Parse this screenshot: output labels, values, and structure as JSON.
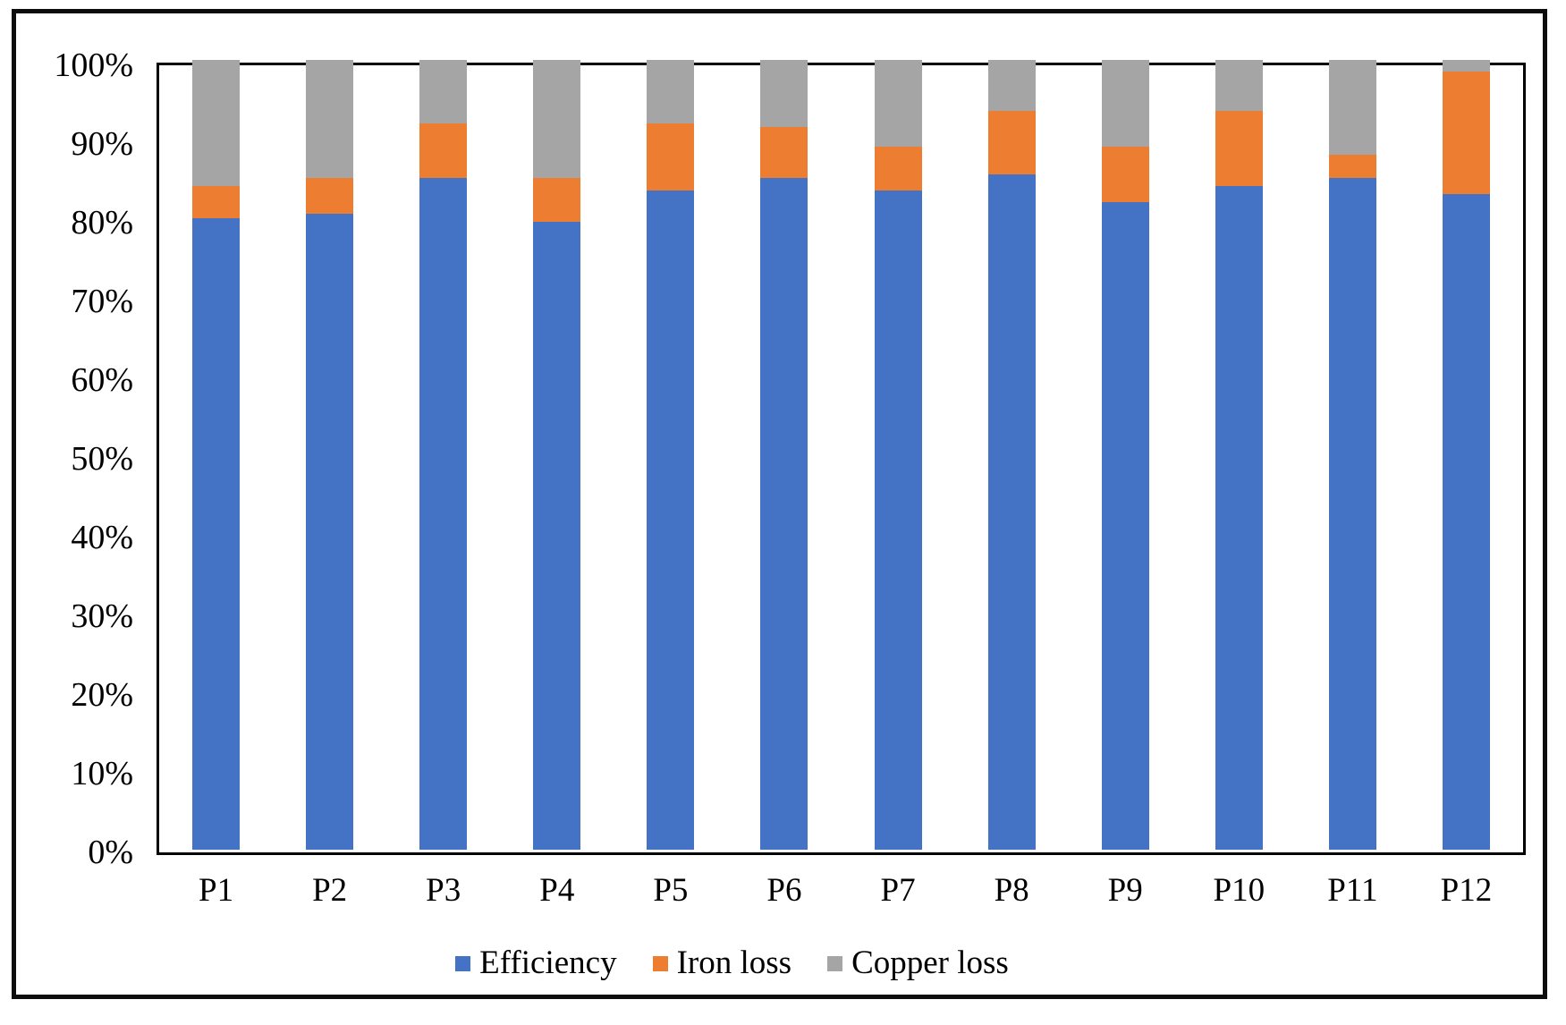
{
  "chart_data": {
    "type": "bar",
    "stacked": true,
    "percent_stacked": true,
    "title": "",
    "xlabel": "",
    "ylabel": "",
    "categories": [
      "P1",
      "P2",
      "P3",
      "P4",
      "P5",
      "P6",
      "P7",
      "P8",
      "P9",
      "P10",
      "P11",
      "P12"
    ],
    "series": [
      {
        "name": "Efficiency",
        "color": "#4472C4",
        "values": [
          80,
          80.5,
          85,
          79.5,
          83.5,
          85,
          83.5,
          85.5,
          82,
          84,
          85,
          83
        ]
      },
      {
        "name": "Iron loss",
        "color": "#ED7D31",
        "values": [
          4,
          4.5,
          7,
          5.5,
          8.5,
          6.5,
          5.5,
          8,
          7,
          9.5,
          3,
          15.5
        ]
      },
      {
        "name": "Copper loss",
        "color": "#A5A5A5",
        "values": [
          16,
          15,
          8,
          15,
          8,
          8.5,
          11,
          6.5,
          11,
          6.5,
          12,
          1.5
        ]
      }
    ],
    "y_ticks": [
      "0%",
      "10%",
      "20%",
      "30%",
      "40%",
      "50%",
      "60%",
      "70%",
      "80%",
      "90%",
      "100%"
    ],
    "ylim": [
      0,
      100
    ],
    "grid": false,
    "legend_position": "bottom",
    "plot_border_color": "#000000",
    "outer_frame_color": "#0d0d0d"
  }
}
